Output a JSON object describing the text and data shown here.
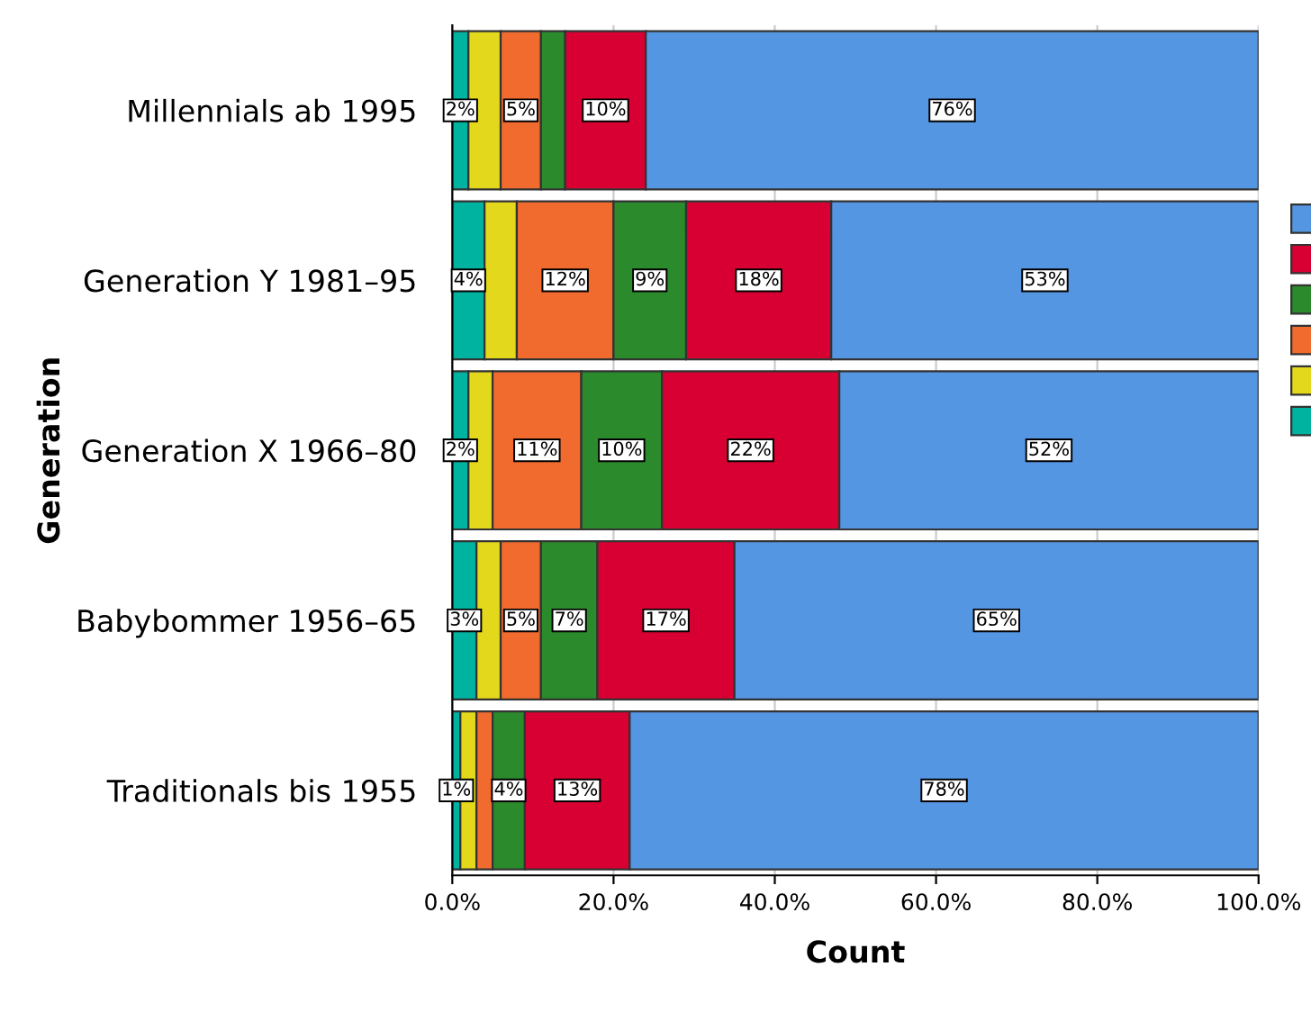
{
  "chart_data": {
    "type": "bar",
    "orientation": "horizontal",
    "stacked": true,
    "xlabel": "Count",
    "ylabel": "Generation",
    "categories": [
      "Millennials ab 1995",
      "Generation Y 1981–95",
      "Generation X 1966–80",
      "Babybommer 1956–65",
      "Traditionals bis 1955"
    ],
    "series": [
      {
        "color": "#00b2a0",
        "values": [
          2,
          4,
          2,
          3,
          1
        ],
        "value_labels": [
          "2%",
          "4%",
          "2%",
          "3%",
          "1%"
        ]
      },
      {
        "color": "#e3d81b",
        "values": [
          4,
          4,
          3,
          3,
          2
        ],
        "value_labels": [
          null,
          null,
          null,
          null,
          null
        ]
      },
      {
        "color": "#f26b2e",
        "values": [
          5,
          12,
          11,
          5,
          2
        ],
        "value_labels": [
          "5%",
          "12%",
          "11%",
          "5%",
          null
        ]
      },
      {
        "color": "#2a8a2c",
        "values": [
          3,
          9,
          10,
          7,
          4
        ],
        "value_labels": [
          null,
          "9%",
          "10%",
          "7%",
          "4%"
        ]
      },
      {
        "color": "#d80032",
        "values": [
          10,
          18,
          22,
          17,
          13
        ],
        "value_labels": [
          "10%",
          "18%",
          "22%",
          "17%",
          "13%"
        ]
      },
      {
        "color": "#5596e3",
        "values": [
          76,
          53,
          52,
          65,
          78
        ],
        "value_labels": [
          "76%",
          "53%",
          "52%",
          "65%",
          "78%"
        ]
      }
    ],
    "xlim": [
      0,
      100
    ],
    "xticks": [
      {
        "value": 0,
        "label": "0.0%"
      },
      {
        "value": 20,
        "label": "20.0%"
      },
      {
        "value": 40,
        "label": "40.0%"
      },
      {
        "value": 60,
        "label": "60.0%"
      },
      {
        "value": 80,
        "label": "80.0%"
      },
      {
        "value": 100,
        "label": "100.0%"
      }
    ],
    "grid": "x"
  }
}
